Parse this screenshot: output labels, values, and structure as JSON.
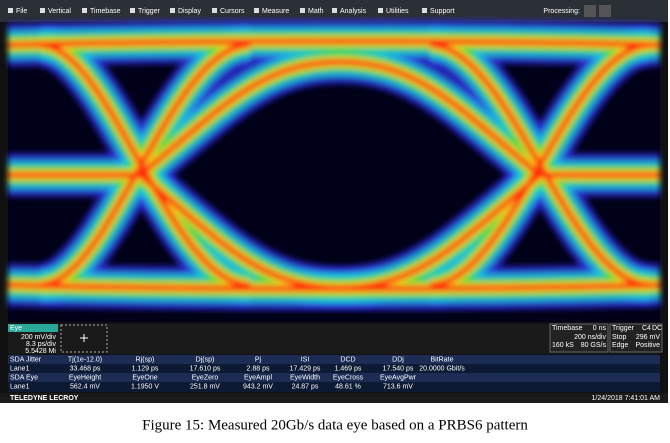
{
  "menu": {
    "items": [
      "File",
      "Vertical",
      "Timebase",
      "Trigger",
      "Display",
      "Cursors",
      "Measure",
      "Math",
      "Analysis",
      "Utilities",
      "Support"
    ],
    "processing": "Processing:"
  },
  "display": {
    "trace_label": "Eye",
    "vertical": "200 mV/div",
    "horizontal": "8.3 ps/div",
    "count": "5.5428 Mi"
  },
  "status": {
    "timebase_label": "Timebase",
    "timebase_delay": "0 ns",
    "trigger_label": "Trigger",
    "trigger_channel": "C4",
    "trigger_coupling": "DC",
    "timebase_scale": "200 ns/div",
    "trigger_mode": "Stop",
    "trigger_level": "296 mV",
    "sample_count": "160 kS",
    "sample_rate": "80 GS/s",
    "trigger_type": "Edge",
    "trigger_slope": "Positive"
  },
  "table": {
    "rows": [
      [
        "SDA Jitter",
        "Tj(1e-12.0)",
        "Rj(sp)",
        "Dj(sp)",
        "Pj",
        "ISI",
        "DCD",
        "DDj",
        "BitRate"
      ],
      [
        "Lane1",
        "33.468 ps",
        "1.129 ps",
        "17.610 ps",
        "2.88 ps",
        "17.429 ps",
        "1.469 ps",
        "17.540 ps",
        "20.0000 Gbit/s"
      ],
      [
        "SDA Eye",
        "EyeHeight",
        "EyeOne",
        "EyeZero",
        "EyeAmpl",
        "EyeWidth",
        "EyeCross",
        "EyeAvgPwr"
      ],
      [
        "Lane1",
        "562.4 mV",
        "1.1950 V",
        "251.8 mV",
        "943.2 mV",
        "24.87 ps",
        "48.61 %",
        "713.6 mV"
      ]
    ]
  },
  "footer": {
    "brand": "TELEDYNE LECROY",
    "timestamp": "1/24/2018 7:41:01 AM"
  },
  "caption": "Figure 15: Measured 20Gb/s data eye based on a PRBS6 pattern"
}
